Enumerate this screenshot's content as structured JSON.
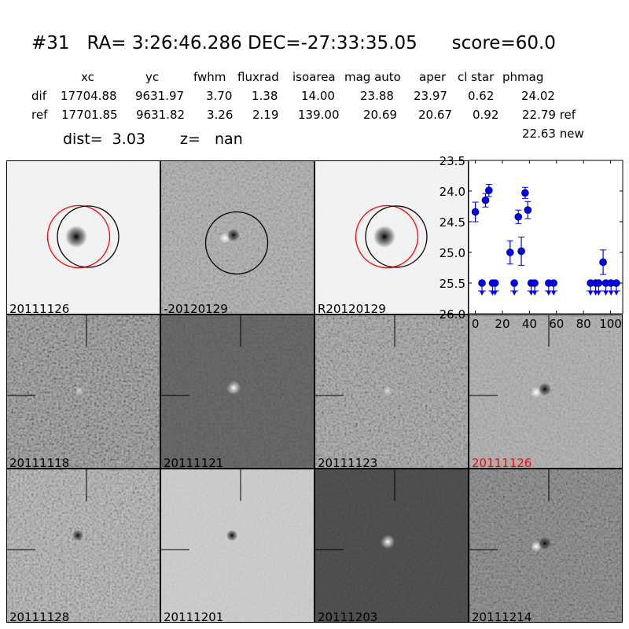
{
  "title": "#31   RA= 3:26:46.286 DEC=-27:33:35.05      score=60.0",
  "table": {
    "headers": [
      "xc",
      "yc",
      "fwhm",
      "fluxrad",
      "isoarea",
      "mag auto",
      "aper",
      "cl star",
      "phmag"
    ],
    "rows": [
      [
        "dif",
        "17704.88",
        "9631.97",
        "3.70",
        "1.38",
        "14.00",
        "23.88",
        "23.97",
        "0.62",
        "24.02"
      ],
      [
        "ref",
        "17701.85",
        "9631.82",
        "3.26",
        "2.19",
        "139.00",
        "20.69",
        "20.67",
        "0.92",
        "22.79 ref"
      ]
    ],
    "new_phmag": "22.63 new",
    "dist": "dist=  3.03",
    "z": "z=   nan"
  },
  "panels": [
    {
      "label": "20111126",
      "tone": "#f3f3f3",
      "noise": 0.03,
      "src": "star",
      "circles": [
        "red",
        "black"
      ]
    },
    {
      "label": "-20120129",
      "tone": "#a8a8a8",
      "noise": 0.35,
      "src": "dipole",
      "circles": [
        "black"
      ]
    },
    {
      "label": "R20120129",
      "tone": "#f3f3f3",
      "noise": 0.03,
      "src": "star",
      "circles": [
        "red",
        "black"
      ]
    },
    {
      "label": "20111118",
      "tone": "#8a8a8a",
      "noise": 0.5,
      "src": "faint"
    },
    {
      "label": "20111121",
      "tone": "#5a5a5a",
      "noise": 0.2,
      "src": "bright"
    },
    {
      "label": "20111123",
      "tone": "#9a9a9a",
      "noise": 0.45,
      "src": "faint"
    },
    {
      "label": "20111126",
      "tone": "#aaaaaa",
      "noise": 0.3,
      "src": "dipole",
      "label_color": "#ff0000"
    },
    {
      "label": "20111128",
      "tone": "#aaaaaa",
      "noise": 0.45,
      "src": "dark"
    },
    {
      "label": "20111201",
      "tone": "#cccccc",
      "noise": 0.15,
      "src": "dark"
    },
    {
      "label": "20111203",
      "tone": "#444444",
      "noise": 0.15,
      "src": "bright"
    },
    {
      "label": "20111214",
      "tone": "#7a7a7a",
      "noise": 0.4,
      "src": "dipole"
    }
  ],
  "colors": {
    "points": "#0000ff",
    "circle_ref": "#ff0000",
    "circle_dif": "#000000"
  },
  "chart_data": {
    "type": "scatter",
    "title": "",
    "xlabel": "",
    "ylabel": "",
    "xlim": [
      -5,
      109
    ],
    "ylim": [
      26.0,
      23.5
    ],
    "y_inverted": true,
    "xticks": [
      "0",
      "20",
      "40",
      "60",
      "80",
      "100"
    ],
    "yticks": [
      "23.5",
      "24.0",
      "24.5",
      "25.0",
      "25.5",
      "26.0"
    ],
    "grid": false,
    "detections": [
      {
        "x": 0,
        "y": 24.34,
        "err": 0.16
      },
      {
        "x": 7.5,
        "y": 24.15,
        "err": 0.11
      },
      {
        "x": 10,
        "y": 23.99,
        "err": 0.1
      },
      {
        "x": 25.7,
        "y": 25.0,
        "err": 0.19
      },
      {
        "x": 31.8,
        "y": 24.42,
        "err": 0.11
      },
      {
        "x": 34,
        "y": 24.98,
        "err": 0.23
      },
      {
        "x": 36.8,
        "y": 24.03,
        "err": 0.09
      },
      {
        "x": 38.8,
        "y": 24.31,
        "err": 0.14
      },
      {
        "x": 94.5,
        "y": 25.16,
        "err": 0.2
      }
    ],
    "upper_limits": {
      "y": 25.5,
      "x": [
        4.9,
        12.7,
        14.6,
        28.8,
        41.3,
        43.9,
        54.2,
        57.9,
        85.2,
        89,
        91.2,
        96.5,
        100.4,
        104.3
      ]
    }
  }
}
